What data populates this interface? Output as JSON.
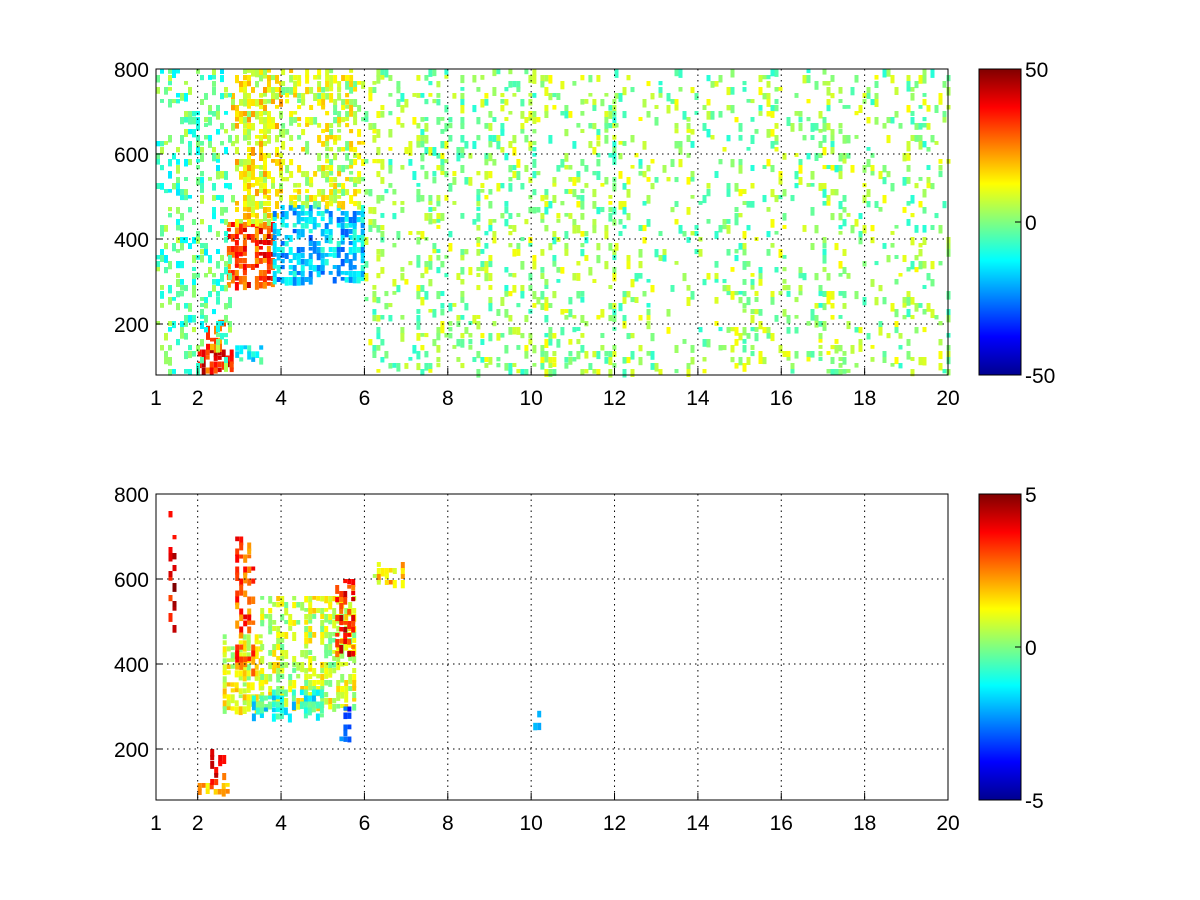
{
  "chart_data": [
    {
      "type": "heatmap",
      "title": "",
      "xlabel": "",
      "ylabel": "",
      "xlim": [
        1,
        20
      ],
      "ylim": [
        80,
        800
      ],
      "x_ticks": [
        1,
        2,
        4,
        6,
        8,
        10,
        12,
        14,
        16,
        18,
        20
      ],
      "y_ticks": [
        200,
        400,
        600,
        800
      ],
      "grid": true,
      "colormap": "jet",
      "colorbar": {
        "min": -50,
        "max": 50,
        "ticks": [
          50,
          0,
          -50
        ]
      },
      "patterns": [
        {
          "x": [
            2.0,
            2.8
          ],
          "y": [
            90,
            140
          ],
          "value": 35,
          "density": 0.85
        },
        {
          "x": [
            2.2,
            2.6
          ],
          "y": [
            140,
            210
          ],
          "value": 28,
          "density": 0.6
        },
        {
          "x": [
            2.7,
            3.8
          ],
          "y": [
            290,
            440
          ],
          "value": 32,
          "density": 0.85
        },
        {
          "x": [
            2.8,
            4.0
          ],
          "y": [
            440,
            800
          ],
          "value": 12,
          "density": 0.65
        },
        {
          "x": [
            3.8,
            6.0
          ],
          "y": [
            300,
            480
          ],
          "value": -18,
          "density": 0.7
        },
        {
          "x": [
            4.0,
            6.0
          ],
          "y": [
            480,
            800
          ],
          "value": 8,
          "density": 0.5
        },
        {
          "x": [
            1.0,
            2.8
          ],
          "y": [
            80,
            800
          ],
          "value": -4,
          "density": 0.25
        },
        {
          "x": [
            2.9,
            3.5
          ],
          "y": [
            110,
            150
          ],
          "value": -14,
          "density": 0.6
        },
        {
          "x": [
            6.0,
            12.0
          ],
          "y": [
            80,
            800
          ],
          "value": 2,
          "density": 0.22
        },
        {
          "x": [
            12.0,
            20.0
          ],
          "y": [
            80,
            800
          ],
          "value": 2,
          "density": 0.17
        }
      ]
    },
    {
      "type": "heatmap",
      "title": "",
      "xlabel": "",
      "ylabel": "",
      "xlim": [
        1,
        20
      ],
      "ylim": [
        80,
        800
      ],
      "x_ticks": [
        1,
        2,
        4,
        6,
        8,
        10,
        12,
        14,
        16,
        18,
        20
      ],
      "y_ticks": [
        200,
        400,
        600,
        800
      ],
      "grid": true,
      "colormap": "jet",
      "colorbar": {
        "min": -5,
        "max": 5,
        "ticks": [
          5,
          0,
          -5
        ]
      },
      "patterns": [
        {
          "x": [
            2.0,
            2.7
          ],
          "y": [
            95,
            120
          ],
          "value": 2.0,
          "density": 0.75
        },
        {
          "x": [
            2.3,
            2.6
          ],
          "y": [
            120,
            200
          ],
          "value": 3.5,
          "density": 0.55
        },
        {
          "x": [
            2.6,
            3.5
          ],
          "y": [
            300,
            470
          ],
          "value": 1.0,
          "density": 0.7
        },
        {
          "x": [
            3.5,
            5.8
          ],
          "y": [
            300,
            560
          ],
          "value": 0.8,
          "density": 0.55
        },
        {
          "x": [
            3.3,
            5.0
          ],
          "y": [
            270,
            340
          ],
          "value": -1.0,
          "density": 0.6
        },
        {
          "x": [
            2.9,
            3.3
          ],
          "y": [
            380,
            700
          ],
          "value": 3.0,
          "density": 0.4
        },
        {
          "x": [
            5.3,
            5.7
          ],
          "y": [
            420,
            600
          ],
          "value": 3.5,
          "density": 0.45
        },
        {
          "x": [
            5.4,
            5.6
          ],
          "y": [
            220,
            300
          ],
          "value": -3.0,
          "density": 0.5
        },
        {
          "x": [
            1.3,
            1.45
          ],
          "y": [
            480,
            760
          ],
          "value": 4.0,
          "density": 0.5
        },
        {
          "x": [
            6.2,
            6.9
          ],
          "y": [
            590,
            640
          ],
          "value": 1.5,
          "density": 0.4
        },
        {
          "x": [
            10.05,
            10.2
          ],
          "y": [
            260,
            290
          ],
          "value": -3.0,
          "density": 0.6
        }
      ]
    }
  ]
}
